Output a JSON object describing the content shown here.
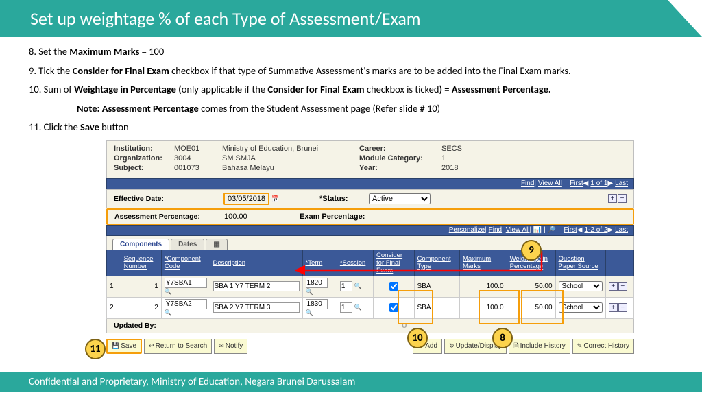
{
  "title": "Set up weightage % of each Type of Assessment/Exam",
  "instructions": {
    "step8_pre": "8. Set the ",
    "step8_b": "Maximum Marks",
    "step8_post": " = 100",
    "step9_pre": "9. Tick the ",
    "step9_b": "Consider for Final Exam",
    "step9_post": " checkbox if that type of Summative Assessment's marks are to be added into the Final Exam marks.",
    "step10_pre": "10. Sum of ",
    "step10_b1": "Weightage in Percentage (",
    "step10_mid": "only applicable if the ",
    "step10_b2": "Consider for Final Exam",
    "step10_mid2": " checkbox is ticked",
    "step10_b3": ")  = Assessment Percentage.",
    "note_b": "Note: Assessment Percentage",
    "note_post": " comes from the Student Assessment page (Refer slide # 10)",
    "step11_pre": "11. Click the ",
    "step11_b": "Save",
    "step11_post": " button"
  },
  "info": {
    "inst_lbl": "Institution:",
    "inst_val": "MOE01",
    "inst_desc": "Ministry of Education, Brunei",
    "org_lbl": "Organization:",
    "org_val": "3004",
    "org_desc": "SM SMJA",
    "subj_lbl": "Subject:",
    "subj_val": "001073",
    "subj_desc": "Bahasa Melayu",
    "career_lbl": "Career:",
    "career_val": "SECS",
    "modcat_lbl": "Module Category:",
    "modcat_val": "1",
    "year_lbl": "Year:",
    "year_val": "2018"
  },
  "effdate": {
    "lbl": "Effective Date:",
    "val": "03/05/2018",
    "status_lbl": "*Status:",
    "status_val": "Active"
  },
  "asmt": {
    "lbl": "Assessment Percentage:",
    "val": "100.00",
    "exam_lbl": "Exam Percentage:"
  },
  "toolbar1": {
    "find": "Find",
    "viewall": "View All",
    "first": "First",
    "range": "1 of 1",
    "last": "Last"
  },
  "toolbar2": {
    "personalize": "Personalize",
    "find": "Find",
    "viewall": "View All",
    "first": "First",
    "range": "1-2 of 2",
    "last": "Last"
  },
  "tabs": {
    "t1": "Components",
    "t2": "Dates"
  },
  "headers": {
    "seq": "Sequence Number",
    "comp": "*Component Code",
    "desc": "Description",
    "term": "*Term",
    "session": "*Session",
    "cfe": "Consider for Final Exam",
    "ctype": "Component Type",
    "max": "Maximum Marks",
    "wip": "Weightage in Percentage",
    "qps": "Question Paper Source"
  },
  "rows": [
    {
      "n": "1",
      "seq": "1",
      "comp": "Y7SBA1",
      "desc": "SBA 1 Y7 TERM 2",
      "term": "1820",
      "session": "1",
      "ctype": "SBA",
      "max": "100.0",
      "wip": "50.00",
      "qps": "School"
    },
    {
      "n": "2",
      "seq": "2",
      "comp": "Y7SBA2",
      "desc": "SBA 2 Y7 TERM 3",
      "term": "1830",
      "session": "1",
      "ctype": "SBA",
      "max": "100.0",
      "wip": "50.00",
      "qps": "School"
    }
  ],
  "updated": {
    "lbl": "Updated By:",
    "upd": "U"
  },
  "buttons": {
    "save": "Save",
    "return": "Return to Search",
    "notify": "Notify",
    "add": "Add",
    "updisp": "Update/Display",
    "inchist": "Include History",
    "corhist": "Correct History"
  },
  "callouts": {
    "c8": "8",
    "c9": "9",
    "c10": "10",
    "c11": "11"
  },
  "footer": "Confidential and Proprietary, Ministry of Education, Negara Brunei Darussalam",
  "colors": {
    "teal": "#2aa89c",
    "orange": "#f59e0b",
    "yellow": "#fcd34d",
    "navblue": "#3b5998"
  }
}
